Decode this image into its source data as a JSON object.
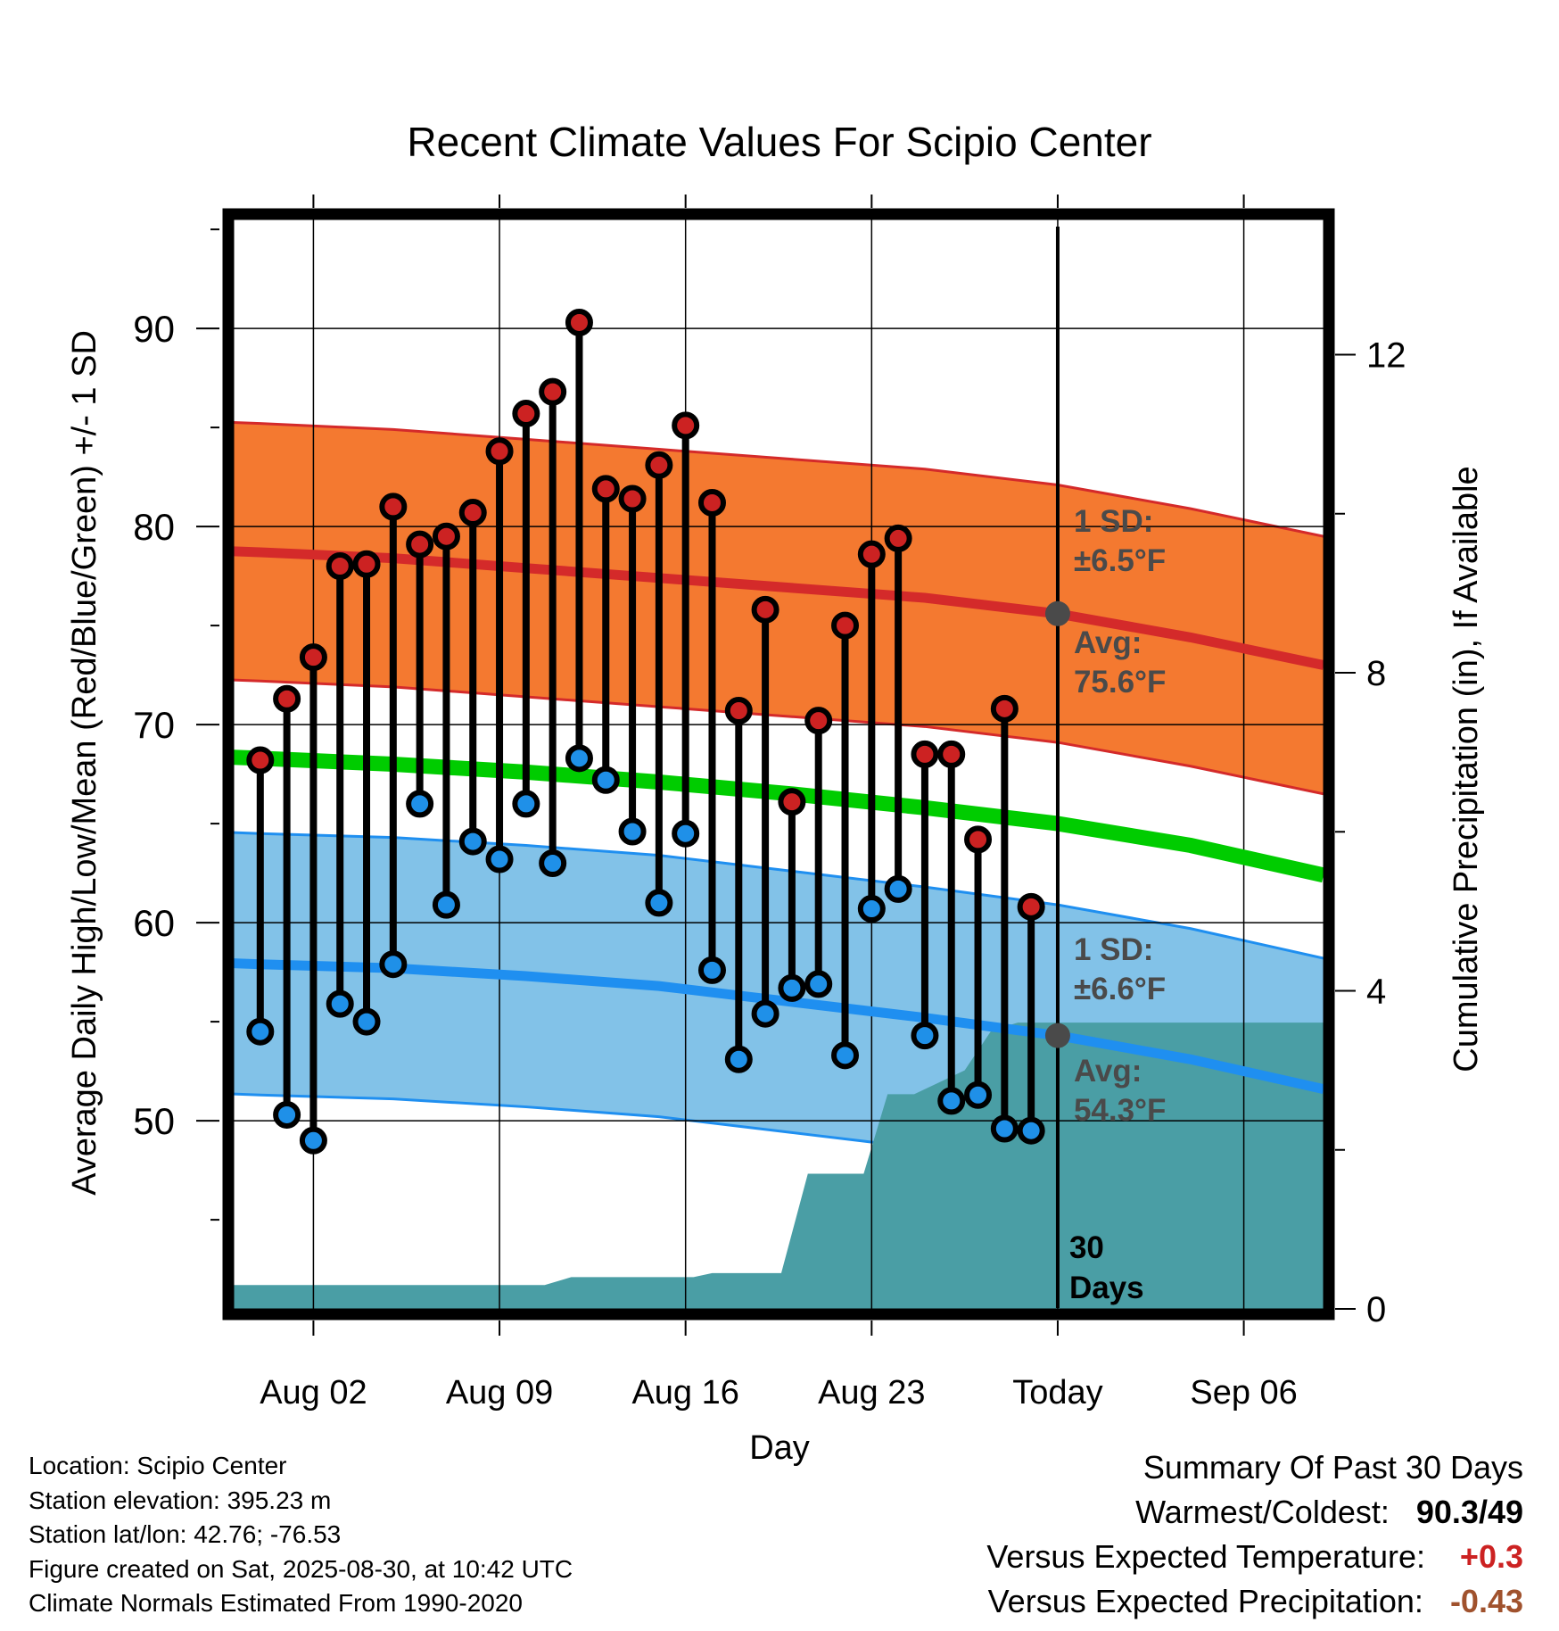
{
  "chart_data": {
    "type": "line",
    "title": "Recent Climate Values For Scipio Center",
    "xlabel": "Day",
    "ylabel": "Average Daily High/Low/Mean (Red/Blue/Green) +/- 1 SD",
    "y2label": "Cumulative Precipitation (in), If Available",
    "x_tick_labels": [
      "Aug 02",
      "Aug 09",
      "Aug 16",
      "Aug 23",
      "Today",
      "Sep 06"
    ],
    "x_tick_days": [
      2,
      9,
      16,
      23,
      30,
      37
    ],
    "x_range": [
      -1,
      40
    ],
    "ylim": [
      40.5,
      95.5
    ],
    "y_ticks": [
      50,
      60,
      70,
      80,
      90
    ],
    "y2lim": [
      0,
      13.7
    ],
    "y2_ticks": [
      0,
      4,
      8,
      12
    ],
    "today_day": 30,
    "today_label": "30 Days",
    "daily_high": {
      "days": [
        0,
        1,
        2,
        3,
        4,
        5,
        6,
        7,
        8,
        9,
        10,
        11,
        12,
        13,
        14,
        15,
        16,
        17,
        18,
        19,
        20,
        21,
        22,
        23,
        24,
        25,
        26,
        27,
        28,
        29
      ],
      "values": [
        68.2,
        71.3,
        73.4,
        78.0,
        78.1,
        81.0,
        79.1,
        79.5,
        80.7,
        83.8,
        85.7,
        86.8,
        90.3,
        81.9,
        81.4,
        83.1,
        85.1,
        81.2,
        70.7,
        75.8,
        66.1,
        70.2,
        75.0,
        78.6,
        79.4,
        68.5,
        68.5,
        64.2,
        70.8,
        60.8
      ]
    },
    "daily_low": {
      "days": [
        0,
        1,
        2,
        3,
        4,
        5,
        6,
        7,
        8,
        9,
        10,
        11,
        12,
        13,
        14,
        15,
        16,
        17,
        18,
        19,
        20,
        21,
        22,
        23,
        24,
        25,
        26,
        27,
        28,
        29
      ],
      "values": [
        54.5,
        50.3,
        49.0,
        55.9,
        55.0,
        57.9,
        66.0,
        60.9,
        64.1,
        63.2,
        66.0,
        63.0,
        68.3,
        67.2,
        64.6,
        61.0,
        64.5,
        57.6,
        53.1,
        55.4,
        56.7,
        56.9,
        53.3,
        60.7,
        61.7,
        54.3,
        51.0,
        51.3,
        49.6,
        49.5
      ]
    },
    "normals": {
      "days": [
        -2,
        0,
        5,
        10,
        15,
        20,
        25,
        30,
        35,
        40
      ],
      "high_avg": [
        78.8,
        78.7,
        78.4,
        77.9,
        77.4,
        76.9,
        76.4,
        75.6,
        74.4,
        73.0
      ],
      "high_sd": 6.5,
      "low_avg": [
        58.0,
        57.9,
        57.7,
        57.3,
        56.8,
        56.0,
        55.2,
        54.3,
        53.1,
        51.6
      ],
      "low_sd": 6.6,
      "mean_avg": [
        68.4,
        68.3,
        68.0,
        67.6,
        67.1,
        66.5,
        65.8,
        65.0,
        63.9,
        62.4
      ]
    },
    "today_high_avg": 75.6,
    "today_low_avg": 54.3,
    "cumulative_precip": {
      "days": [
        -2,
        -1.4,
        10.7,
        11.7,
        16.3,
        17,
        19.6,
        20.6,
        22.7,
        23.6,
        24.6,
        26.5,
        27.5,
        28.5,
        40
      ],
      "values": [
        0.0,
        0.3,
        0.3,
        0.4,
        0.4,
        0.45,
        0.45,
        1.7,
        1.7,
        2.7,
        2.7,
        3.0,
        3.5,
        3.6,
        3.6
      ]
    },
    "annotations": {
      "high_sd_line1": "1 SD:",
      "high_sd_line2": "±6.5°F",
      "high_avg_line1": "Avg:",
      "high_avg_line2": "75.6°F",
      "low_sd_line1": "1 SD:",
      "low_sd_line2": "±6.6°F",
      "low_avg_line1": "Avg:",
      "low_avg_line2": "54.3°F"
    },
    "grid": true,
    "colors": {
      "high_band": "#f47930",
      "high_line": "#d42a2a",
      "low_band": "#82c2e8",
      "low_line": "#1f8ff0",
      "mean_line": "#00cc00",
      "precip": "#4a9ea5",
      "high_dot": "#cc2222",
      "low_dot": "#1f90e8",
      "annotation": "#4a4a4a"
    }
  },
  "footer": {
    "location": "Location: Scipio Center",
    "elevation": "Station elevation: 395.23 m",
    "latlon": "Station lat/lon: 42.76; -76.53",
    "created": "Figure created on Sat, 2025-08-30, at 10:42 UTC",
    "normals": "Climate Normals Estimated From 1990-2020"
  },
  "summary": {
    "heading": "Summary Of Past 30 Days",
    "warmest_coldest_label": "Warmest/Coldest:",
    "warmest": "90.3",
    "coldest": "/49",
    "temp_label": "Versus Expected Temperature:",
    "temp_value": "+0.3",
    "temp_color": "#cc2222",
    "precip_label": "Versus Expected Precipitation:",
    "precip_value": "-0.43",
    "precip_color": "#a0522d"
  }
}
